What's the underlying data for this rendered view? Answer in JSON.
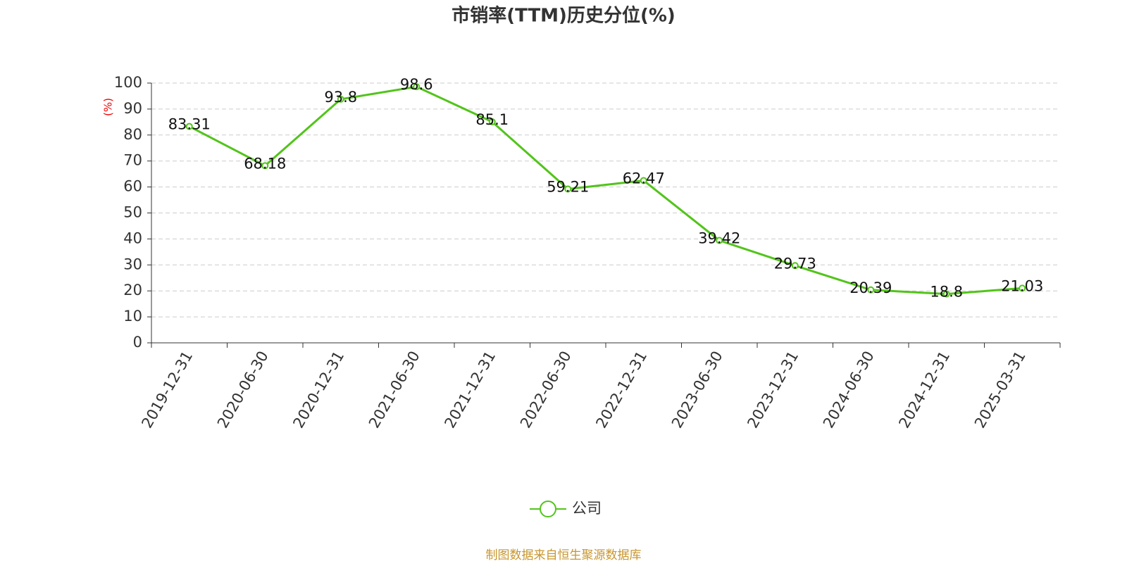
{
  "chart_data": {
    "type": "line",
    "title": "市销率(TTM)历史分位(%)",
    "y_label": "(%)",
    "categories": [
      "2019-12-31",
      "2020-06-30",
      "2020-12-31",
      "2021-06-30",
      "2021-12-31",
      "2022-06-30",
      "2022-12-31",
      "2023-06-30",
      "2023-12-31",
      "2024-06-30",
      "2024-12-31",
      "2025-03-31"
    ],
    "series": [
      {
        "name": "公司",
        "color": "#52c41a",
        "values": [
          83.31,
          68.18,
          93.8,
          98.6,
          85.1,
          59.21,
          62.47,
          39.42,
          29.73,
          20.39,
          18.8,
          21.03
        ]
      }
    ],
    "ylim": [
      0,
      100
    ],
    "yticks": [
      0,
      10,
      20,
      30,
      40,
      50,
      60,
      70,
      80,
      90,
      100
    ],
    "grid": true,
    "legend": "bottom",
    "source": "制图数据来自恒生聚源数据库"
  }
}
